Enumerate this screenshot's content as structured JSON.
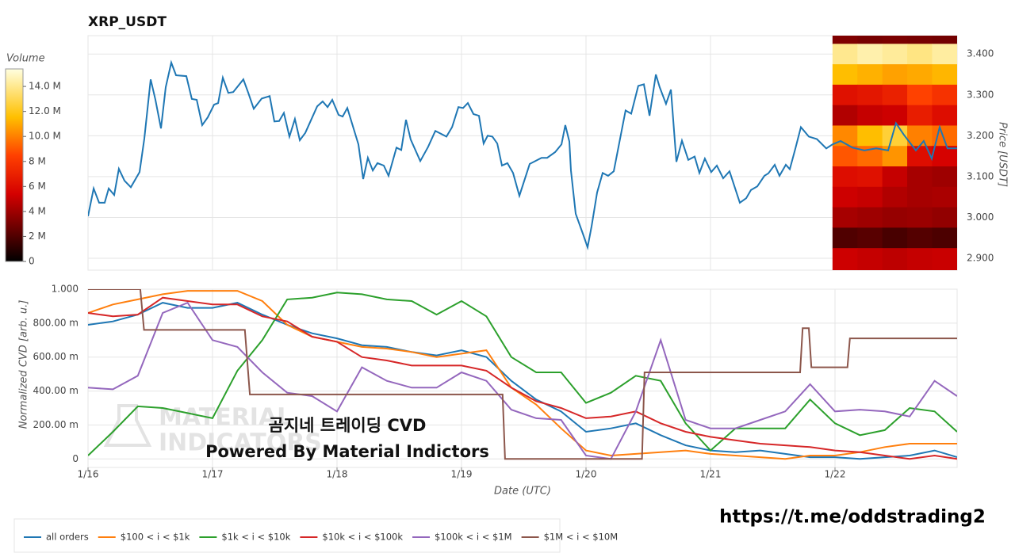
{
  "chart_data": [
    {
      "type": "line",
      "title": "XRP_USDT",
      "y_label": "Price [USDT]",
      "color": "#1f77b4",
      "grid": true,
      "xlim": [
        0,
        6.981
      ],
      "xticks": [
        0,
        1,
        2,
        3,
        4,
        5,
        6
      ],
      "ylim": [
        2.871,
        3.445
      ],
      "yticks": [
        {
          "value": 2.9,
          "label": "2.900"
        },
        {
          "value": 3.0,
          "label": "3.000"
        },
        {
          "value": 3.1,
          "label": "3.100"
        },
        {
          "value": 3.2,
          "label": "3.200"
        },
        {
          "value": 3.3,
          "label": "3.300"
        },
        {
          "value": 3.4,
          "label": "3.400"
        }
      ],
      "x": [
        0,
        0.045,
        0.089,
        0.134,
        0.166,
        0.21,
        0.248,
        0.293,
        0.344,
        0.414,
        0.452,
        0.503,
        0.541,
        0.586,
        0.624,
        0.669,
        0.707,
        0.79,
        0.834,
        0.873,
        0.917,
        0.962,
        1.013,
        1.045,
        1.083,
        1.127,
        1.166,
        1.248,
        1.287,
        1.331,
        1.395,
        1.459,
        1.497,
        1.535,
        1.573,
        1.618,
        1.662,
        1.701,
        1.745,
        1.841,
        1.885,
        1.924,
        1.962,
        2.013,
        2.045,
        2.083,
        2.172,
        2.21,
        2.248,
        2.287,
        2.325,
        2.376,
        2.414,
        2.478,
        2.516,
        2.554,
        2.592,
        2.669,
        2.732,
        2.79,
        2.879,
        2.924,
        2.975,
        3.013,
        3.051,
        3.096,
        3.14,
        3.178,
        3.21,
        3.248,
        3.287,
        3.325,
        3.369,
        3.414,
        3.465,
        3.548,
        3.643,
        3.688,
        3.752,
        3.803,
        3.834,
        3.866,
        3.879,
        3.917,
        3.975,
        4.013,
        4.045,
        4.089,
        4.134,
        4.178,
        4.223,
        4.261,
        4.318,
        4.363,
        4.42,
        4.465,
        4.51,
        4.561,
        4.592,
        4.643,
        4.682,
        4.726,
        4.771,
        4.822,
        4.873,
        4.911,
        4.955,
        5.006,
        5.051,
        5.102,
        5.153,
        5.236,
        5.287,
        5.325,
        5.376,
        5.433,
        5.465,
        5.516,
        5.554,
        5.605,
        5.637,
        5.682,
        5.726,
        5.79,
        5.854,
        5.93,
        5.981,
        6.045,
        6.14,
        6.236,
        6.331,
        6.427,
        6.49,
        6.554,
        6.65,
        6.713,
        6.777,
        6.841,
        6.904,
        6.981
      ],
      "values": [
        3.003,
        3.071,
        3.036,
        3.036,
        3.071,
        3.055,
        3.119,
        3.09,
        3.074,
        3.111,
        3.193,
        3.338,
        3.289,
        3.218,
        3.319,
        3.379,
        3.348,
        3.346,
        3.29,
        3.288,
        3.226,
        3.245,
        3.276,
        3.28,
        3.342,
        3.305,
        3.307,
        3.338,
        3.305,
        3.266,
        3.291,
        3.297,
        3.235,
        3.236,
        3.256,
        3.198,
        3.241,
        3.189,
        3.207,
        3.272,
        3.284,
        3.27,
        3.288,
        3.251,
        3.247,
        3.268,
        3.179,
        3.094,
        3.146,
        3.115,
        3.133,
        3.127,
        3.102,
        3.171,
        3.165,
        3.239,
        3.191,
        3.138,
        3.173,
        3.212,
        3.198,
        3.221,
        3.27,
        3.268,
        3.28,
        3.253,
        3.249,
        3.181,
        3.2,
        3.198,
        3.181,
        3.127,
        3.133,
        3.109,
        3.053,
        3.131,
        3.146,
        3.146,
        3.16,
        3.179,
        3.226,
        3.186,
        3.115,
        3.009,
        2.96,
        2.927,
        2.979,
        3.061,
        3.109,
        3.102,
        3.113,
        3.173,
        3.262,
        3.254,
        3.322,
        3.326,
        3.249,
        3.35,
        3.319,
        3.278,
        3.313,
        3.136,
        3.188,
        3.141,
        3.149,
        3.109,
        3.144,
        3.111,
        3.127,
        3.096,
        3.113,
        3.036,
        3.047,
        3.067,
        3.076,
        3.102,
        3.108,
        3.129,
        3.102,
        3.129,
        3.118,
        3.169,
        3.221,
        3.198,
        3.192,
        3.169,
        3.179,
        3.187,
        3.171,
        3.164,
        3.169,
        3.164,
        3.231,
        3.202,
        3.164,
        3.187,
        3.144,
        3.221,
        3.169,
        3.169
      ],
      "heatmap": {
        "x_edges": [
          5.98,
          6.18,
          6.38,
          6.58,
          6.78,
          6.981
        ],
        "y_edges": [
          3.445,
          3.425,
          3.375,
          3.325,
          3.275,
          3.225,
          3.175,
          3.125,
          3.075,
          3.025,
          2.975,
          2.925,
          2.871
        ],
        "values": [
          [
            3200000,
            3000000,
            3100000,
            3000000,
            2900000
          ],
          [
            14000000,
            14500000,
            14200000,
            13800000,
            14300000
          ],
          [
            11500000,
            11200000,
            10800000,
            11000000,
            11300000
          ],
          [
            6200000,
            6500000,
            7000000,
            8500000,
            7800000
          ],
          [
            4500000,
            5000000,
            5200000,
            6800000,
            6000000
          ],
          [
            10200000,
            11500000,
            12500000,
            10000000,
            9500000
          ],
          [
            9000000,
            9500000,
            10500000,
            6000000,
            5500000
          ],
          [
            6000000,
            6200000,
            5000000,
            4200000,
            4000000
          ],
          [
            5200000,
            5000000,
            4500000,
            4200000,
            4300000
          ],
          [
            4200000,
            4000000,
            3800000,
            3900000,
            3700000
          ],
          [
            2000000,
            2200000,
            1800000,
            2100000,
            1900000
          ],
          [
            5200000,
            5000000,
            4800000,
            5000000,
            5100000
          ]
        ]
      },
      "colorbar": {
        "title": "Volume",
        "lim": [
          0,
          15400000
        ],
        "ticks": [
          0,
          {
            "value": 2000000,
            "label": "2 M"
          },
          {
            "value": 4000000,
            "label": "4 M"
          },
          {
            "value": 6000000,
            "label": "6 M"
          },
          {
            "value": 8000000,
            "label": "8 M"
          },
          {
            "value": 10000000,
            "label": "10.0 M"
          },
          {
            "value": 12000000,
            "label": "12.0 M"
          },
          {
            "value": 14000000,
            "label": "14.0 M"
          }
        ]
      }
    },
    {
      "type": "line",
      "x_label": "Date (UTC)",
      "y_label": "Normalized CVD [arb. u.]",
      "grid": true,
      "legend": "bottom",
      "xlim": [
        0,
        6.981
      ],
      "xticks": [
        {
          "value": 0,
          "label": "1/16"
        },
        {
          "value": 1,
          "label": "1/17"
        },
        {
          "value": 2,
          "label": "1/18"
        },
        {
          "value": 3,
          "label": "1/19"
        },
        {
          "value": 4,
          "label": "1/20"
        },
        {
          "value": 5,
          "label": "1/21"
        },
        {
          "value": 6,
          "label": "1/22"
        }
      ],
      "ylim": [
        -0.05,
        1.0
      ],
      "yticks": [
        0,
        {
          "value": 0.2,
          "label": "200.00 m"
        },
        {
          "value": 0.4,
          "label": "400.00 m"
        },
        {
          "value": 0.6,
          "label": "600.00 m"
        },
        {
          "value": 0.8,
          "label": "800.00 m"
        },
        {
          "value": 1.0,
          "label": "1.000"
        }
      ],
      "x": [
        0,
        0.2,
        0.4,
        0.6,
        0.8,
        1.0,
        1.2,
        1.4,
        1.6,
        1.8,
        2.0,
        2.2,
        2.4,
        2.6,
        2.8,
        3.0,
        3.2,
        3.4,
        3.6,
        3.8,
        4.0,
        4.2,
        4.4,
        4.6,
        4.8,
        5.0,
        5.2,
        5.4,
        5.6,
        5.8,
        6.0,
        6.2,
        6.4,
        6.6,
        6.8,
        6.981
      ],
      "series": [
        {
          "name": "all orders",
          "color": "#1f77b4",
          "values": [
            0.79,
            0.81,
            0.85,
            0.92,
            0.89,
            0.89,
            0.92,
            0.85,
            0.79,
            0.74,
            0.71,
            0.67,
            0.66,
            0.63,
            0.61,
            0.64,
            0.6,
            0.46,
            0.35,
            0.28,
            0.16,
            0.18,
            0.21,
            0.14,
            0.08,
            0.05,
            0.04,
            0.05,
            0.03,
            0.01,
            0.01,
            0.0,
            0.01,
            0.02,
            0.05,
            0.01
          ]
        },
        {
          "name": "$100 < i < $1k",
          "color": "#ff7f0e",
          "values": [
            0.86,
            0.91,
            0.94,
            0.97,
            0.99,
            0.99,
            0.99,
            0.93,
            0.79,
            0.72,
            0.69,
            0.66,
            0.65,
            0.63,
            0.6,
            0.62,
            0.64,
            0.42,
            0.32,
            0.18,
            0.05,
            0.02,
            0.03,
            0.04,
            0.05,
            0.03,
            0.02,
            0.01,
            0.0,
            0.02,
            0.02,
            0.04,
            0.07,
            0.09,
            0.09,
            0.09
          ]
        },
        {
          "name": "$1k < i < $10k",
          "color": "#2ca02c",
          "values": [
            0.02,
            0.16,
            0.31,
            0.3,
            0.27,
            0.24,
            0.52,
            0.7,
            0.94,
            0.95,
            0.98,
            0.97,
            0.94,
            0.93,
            0.85,
            0.93,
            0.84,
            0.6,
            0.51,
            0.51,
            0.33,
            0.39,
            0.49,
            0.46,
            0.21,
            0.05,
            0.18,
            0.18,
            0.18,
            0.35,
            0.21,
            0.14,
            0.17,
            0.3,
            0.28,
            0.16
          ]
        },
        {
          "name": "$10k < i < $100k",
          "color": "#d62728",
          "values": [
            0.86,
            0.84,
            0.85,
            0.95,
            0.93,
            0.91,
            0.91,
            0.84,
            0.81,
            0.72,
            0.69,
            0.6,
            0.58,
            0.55,
            0.55,
            0.55,
            0.52,
            0.42,
            0.34,
            0.3,
            0.24,
            0.25,
            0.28,
            0.21,
            0.16,
            0.13,
            0.11,
            0.09,
            0.08,
            0.07,
            0.05,
            0.04,
            0.02,
            0.0,
            0.02,
            0.0
          ]
        },
        {
          "name": "$100k < i < $1M",
          "color": "#9467bd",
          "values": [
            0.42,
            0.41,
            0.49,
            0.86,
            0.92,
            0.7,
            0.66,
            0.51,
            0.39,
            0.37,
            0.28,
            0.54,
            0.46,
            0.42,
            0.42,
            0.51,
            0.46,
            0.29,
            0.24,
            0.23,
            0.02,
            0.0,
            0.28,
            0.7,
            0.23,
            0.18,
            0.18,
            0.23,
            0.28,
            0.44,
            0.28,
            0.29,
            0.28,
            0.25,
            0.46,
            0.37
          ]
        },
        {
          "name": "$1M < i < $10M",
          "color": "#8c564b",
          "x": [
            0,
            0.42,
            0.45,
            1.26,
            1.3,
            3.33,
            3.35,
            4.45,
            4.47,
            5.72,
            5.74,
            5.79,
            5.81,
            6.1,
            6.12,
            6.981
          ],
          "values": [
            1,
            1,
            0.76,
            0.76,
            0.38,
            0.38,
            0,
            0,
            0.51,
            0.51,
            0.77,
            0.77,
            0.54,
            0.54,
            0.71,
            0.71
          ]
        }
      ],
      "annotations": [
        "곰지네 트레이딩 CVD",
        "Powered By Material Indictors"
      ],
      "watermark": [
        "MATERIAL",
        "INDICATORS"
      ]
    }
  ],
  "footer": {
    "link": "https://t.me/oddstrading2"
  }
}
